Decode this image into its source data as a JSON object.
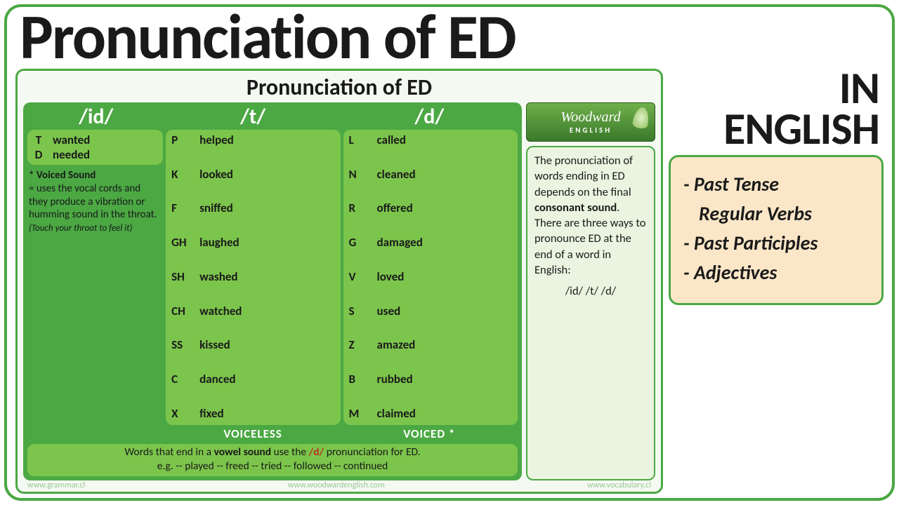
{
  "title": "Pronunciation of ED",
  "right": {
    "line1": "IN",
    "line2": "ENGLISH",
    "topics": {
      "t1": "- Past Tense",
      "t1b": "Regular Verbs",
      "t2": "- Past Participles",
      "t3": "- Adjectives"
    }
  },
  "card": {
    "title": "Pronunciation of ED",
    "heads": {
      "id": "/id/",
      "t": "/t/",
      "d": "/d/"
    },
    "id_rows": [
      {
        "lt": "T",
        "w": "wanted"
      },
      {
        "lt": "D",
        "w": "needed"
      }
    ],
    "voiced_note": {
      "head": "* Voiced Sound",
      "body": "= uses the vocal cords and they produce a vibration or humming sound in the throat.",
      "tiny": "(Touch your throat to feel it)"
    },
    "t_rows": [
      {
        "lt": "P",
        "w": "helped"
      },
      {
        "lt": "K",
        "w": "looked"
      },
      {
        "lt": "F",
        "w": "sniffed"
      },
      {
        "lt": "GH",
        "w": "laughed"
      },
      {
        "lt": "SH",
        "w": "washed"
      },
      {
        "lt": "CH",
        "w": "watched"
      },
      {
        "lt": "SS",
        "w": "kissed"
      },
      {
        "lt": "C",
        "w": "danced"
      },
      {
        "lt": "X",
        "w": "fixed"
      }
    ],
    "d_rows": [
      {
        "lt": "L",
        "w": "called"
      },
      {
        "lt": "N",
        "w": "cleaned"
      },
      {
        "lt": "R",
        "w": "offered"
      },
      {
        "lt": "G",
        "w": "damaged"
      },
      {
        "lt": "V",
        "w": "loved"
      },
      {
        "lt": "S",
        "w": "used"
      },
      {
        "lt": "Z",
        "w": "amazed"
      },
      {
        "lt": "B",
        "w": "rubbed"
      },
      {
        "lt": "M",
        "w": "claimed"
      }
    ],
    "voice_labels": {
      "voiceless": "VOICELESS",
      "voiced": "VOICED *"
    },
    "vowel": {
      "l1a": "Words that end in a ",
      "l1b": "vowel sound",
      "l1c": " use the ",
      "l1d": "/d/",
      "l1e": " pronunciation for ED.",
      "l2": "e.g. -- played -- freed -- tried -- followed -- continued"
    },
    "logo": {
      "brand": "Woodward",
      "sub": "ENGLISH"
    },
    "desc": {
      "a": "The pronunciation of words ending in ED depends on the final ",
      "b": "consonant sound",
      "c": ". There are three ways to pronounce ED at the end of a word in English:",
      "sounds": "/id/   /t/   /d/"
    },
    "footer": {
      "l": "www.grammar.cl",
      "m": "www.woodwardenglish.com",
      "r": "www.vocabulary.cl"
    }
  },
  "colors": {
    "border_green": "#4ba843",
    "panel_green": "#4ba843",
    "pill_green": "#7cc54c",
    "desc_bg": "#eaf4e0",
    "topics_bg": "#fbe7c8",
    "slash_red": "#b9301f"
  }
}
